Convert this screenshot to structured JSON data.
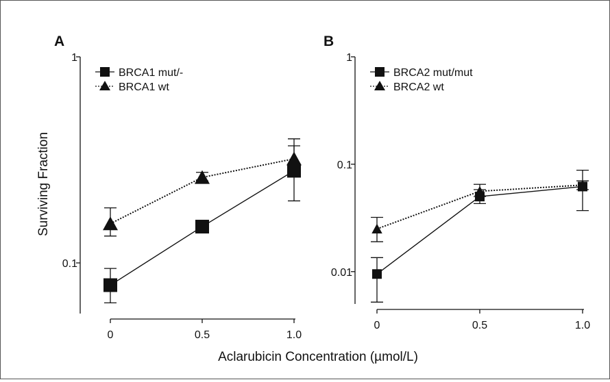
{
  "figure": {
    "shared_xlabel": "Aclarubicin Concentration (µmol/L)",
    "line_color": "#111111"
  },
  "chart_data": [
    {
      "type": "line",
      "panel": "A",
      "title": "",
      "xlabel": "",
      "ylabel": "Surviving Fraction",
      "x": [
        0,
        0.5,
        1.0
      ],
      "x_ticks": [
        0,
        0.5,
        1.0
      ],
      "x_tick_labels": [
        "0",
        "0.5",
        "1.0"
      ],
      "xlim": [
        0,
        1.0
      ],
      "y_scale": "log",
      "ylim": [
        0.0568,
        1
      ],
      "y_ticks": [
        0.1,
        1
      ],
      "y_tick_labels": [
        "0.1",
        "1"
      ],
      "grid": false,
      "legend_position": "top-left",
      "series": [
        {
          "name": "BRCA1 mut/-",
          "marker": "square",
          "line_style": "solid",
          "values": [
            0.078,
            0.15,
            0.28
          ],
          "error_low": [
            0.064,
            0.14,
            0.2
          ],
          "error_high": [
            0.094,
            0.16,
            0.37
          ]
        },
        {
          "name": "BRCA1 wt",
          "marker": "triangle",
          "line_style": "dotted",
          "values": [
            0.155,
            0.26,
            0.32
          ],
          "error_low": [
            0.135,
            0.25,
            0.29
          ],
          "error_high": [
            0.185,
            0.275,
            0.4
          ]
        }
      ]
    },
    {
      "type": "line",
      "panel": "B",
      "title": "",
      "xlabel": "",
      "ylabel": "",
      "x": [
        0,
        0.5,
        1.0
      ],
      "x_ticks": [
        0,
        0.5,
        1.0
      ],
      "x_tick_labels": [
        "0",
        "0.5",
        "1.0"
      ],
      "xlim": [
        0,
        1.0
      ],
      "y_scale": "log",
      "ylim": [
        0.005,
        1
      ],
      "y_ticks": [
        0.01,
        0.1,
        1
      ],
      "y_tick_labels": [
        "0.01",
        "0.1",
        "1"
      ],
      "grid": false,
      "legend_position": "top-left",
      "series": [
        {
          "name": "BRCA2 mut/mut",
          "marker": "square",
          "line_style": "solid",
          "values": [
            0.0095,
            0.05,
            0.062
          ],
          "error_low": [
            0.0052,
            0.043,
            0.037
          ],
          "error_high": [
            0.0135,
            0.058,
            0.088
          ]
        },
        {
          "name": "BRCA2 wt",
          "marker": "triangle",
          "line_style": "dotted",
          "values": [
            0.025,
            0.056,
            0.064
          ],
          "error_low": [
            0.019,
            0.05,
            0.058
          ],
          "error_high": [
            0.032,
            0.065,
            0.07
          ]
        }
      ]
    }
  ]
}
